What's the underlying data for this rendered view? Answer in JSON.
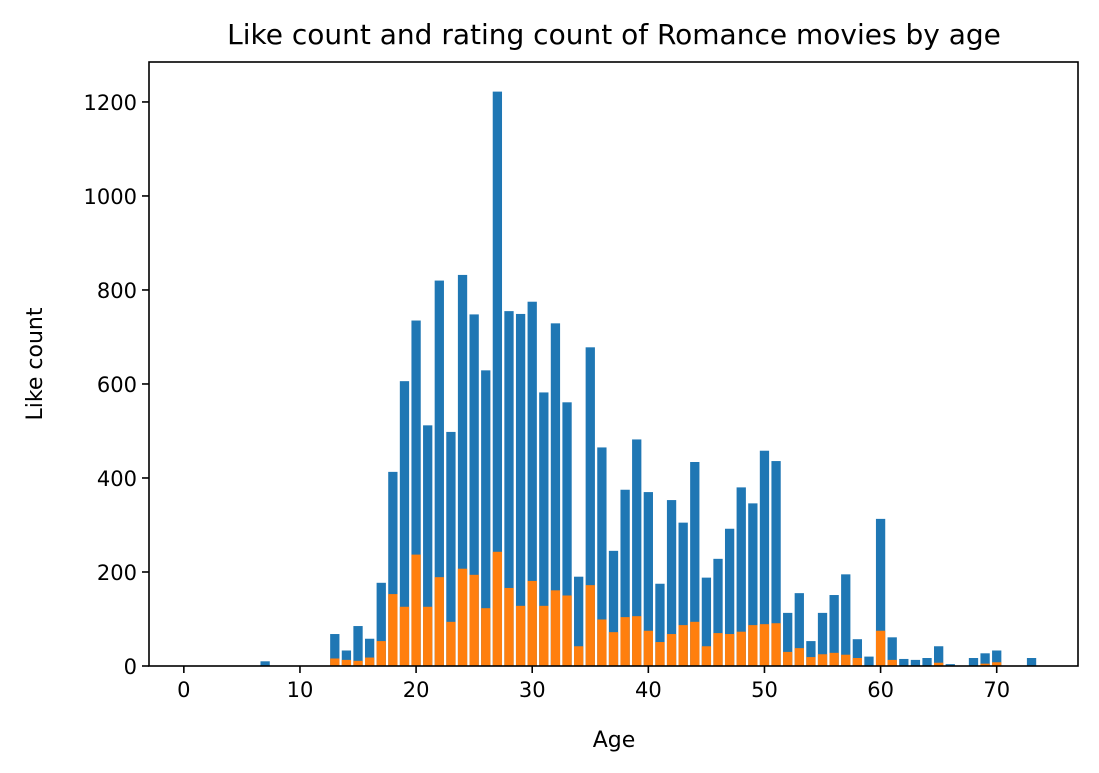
{
  "chart_data": {
    "type": "bar",
    "title": "Like count and rating count of Romance movies by age",
    "xlabel": "Age",
    "ylabel": "Like count",
    "xlim": [
      -3,
      77
    ],
    "ylim": [
      0,
      1285
    ],
    "xticks": [
      0,
      10,
      20,
      30,
      40,
      50,
      60,
      70
    ],
    "yticks": [
      0,
      200,
      400,
      600,
      800,
      1000,
      1200
    ],
    "grid": false,
    "colors": {
      "like": "#1f77b4",
      "rating": "#ff7f0e"
    },
    "x": [
      7,
      13,
      14,
      15,
      16,
      17,
      18,
      19,
      20,
      21,
      22,
      23,
      24,
      25,
      26,
      27,
      28,
      29,
      30,
      31,
      32,
      33,
      34,
      35,
      36,
      37,
      38,
      39,
      40,
      41,
      42,
      43,
      44,
      45,
      46,
      47,
      48,
      49,
      50,
      51,
      52,
      53,
      54,
      55,
      56,
      57,
      58,
      59,
      60,
      61,
      62,
      63,
      64,
      65,
      66,
      68,
      69,
      70,
      73
    ],
    "series": [
      {
        "key": "like",
        "values": [
          10,
          68,
          33,
          85,
          58,
          177,
          413,
          606,
          735,
          512,
          820,
          498,
          832,
          748,
          629,
          1222,
          755,
          749,
          775,
          582,
          729,
          561,
          190,
          678,
          465,
          245,
          375,
          482,
          370,
          175,
          353,
          305,
          434,
          188,
          228,
          292,
          380,
          346,
          458,
          436,
          113,
          155,
          53,
          113,
          151,
          195,
          57,
          20,
          313,
          61,
          15,
          13,
          17,
          42,
          4,
          17,
          27,
          33,
          17
        ]
      },
      {
        "key": "rating",
        "values": [
          0,
          16,
          13,
          11,
          18,
          53,
          153,
          126,
          237,
          126,
          189,
          94,
          207,
          194,
          123,
          243,
          166,
          128,
          181,
          128,
          161,
          150,
          42,
          172,
          99,
          72,
          104,
          106,
          75,
          51,
          68,
          87,
          94,
          42,
          70,
          68,
          73,
          87,
          89,
          91,
          30,
          38,
          19,
          25,
          28,
          24,
          17,
          0,
          75,
          13,
          0,
          0,
          0,
          7,
          0,
          0,
          5,
          8,
          0
        ]
      }
    ]
  }
}
